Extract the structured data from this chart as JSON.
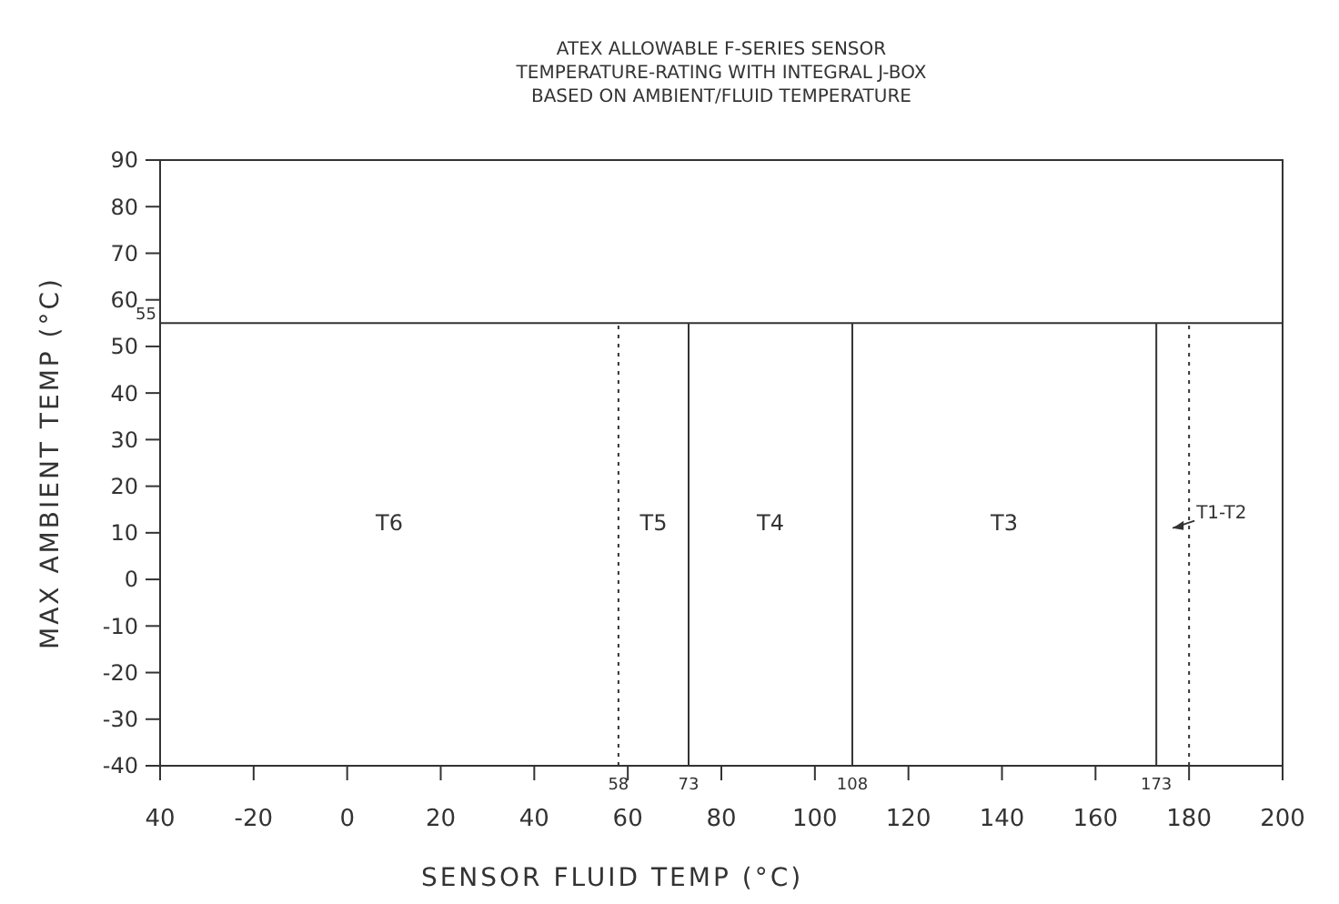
{
  "chart_data": {
    "type": "line",
    "title": "ATEX ALLOWABLE F-SERIES SENSOR\nTEMPERATURE-RATING WITH INTEGRAL J-BOX\nBASED ON AMBIENT/FLUID TEMPERATURE",
    "xlabel": "SENSOR FLUID TEMP (°C)",
    "ylabel": "MAX AMBIENT TEMP (°C)",
    "xlim": [
      -40,
      200
    ],
    "ylim": [
      -40,
      90
    ],
    "xticks": [
      {
        "value": -40,
        "label": "40"
      },
      -20,
      0,
      20,
      40,
      60,
      80,
      100,
      120,
      140,
      160,
      180,
      200
    ],
    "yticks": [
      -40,
      -30,
      -20,
      -10,
      0,
      10,
      20,
      30,
      40,
      50,
      60,
      70,
      80,
      90
    ],
    "grid": false,
    "ref_lines": [
      {
        "axis": "y",
        "value": 55,
        "label": "55"
      },
      {
        "axis": "x",
        "value": 58,
        "label": "58",
        "line_style": "dotted"
      },
      {
        "axis": "x",
        "value": 73,
        "label": "73"
      },
      {
        "axis": "x",
        "value": 108,
        "label": "108"
      },
      {
        "axis": "x",
        "value": 173,
        "label": "173"
      },
      {
        "axis": "x",
        "value": 180,
        "line_style": "dotted"
      }
    ],
    "annotations": [
      "T6",
      "T5",
      "T4",
      "T3",
      "T1-T2"
    ]
  }
}
